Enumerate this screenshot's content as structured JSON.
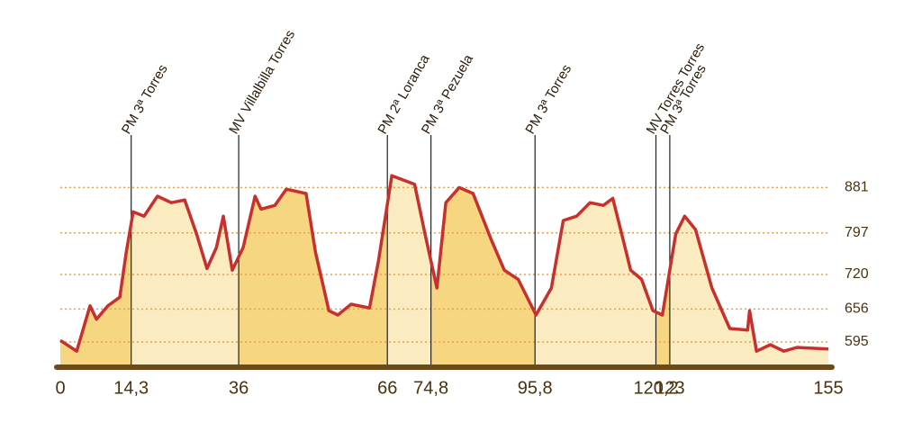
{
  "chart_data": {
    "type": "area",
    "x": [
      0,
      3.3,
      6,
      7.3,
      9.6,
      12,
      13.3,
      14.7,
      16.9,
      19.6,
      22.4,
      25.1,
      27.5,
      29.6,
      31.5,
      32.9,
      34.7,
      36.9,
      39.3,
      40.5,
      43.3,
      45.6,
      49.6,
      51.5,
      54.2,
      56,
      58.7,
      62.4,
      64.2,
      66.9,
      71.5,
      73.6,
      76,
      77.8,
      80.5,
      83.3,
      86.9,
      89.6,
      92.4,
      96,
      99.1,
      101.5,
      104.2,
      106.9,
      109.6,
      111.5,
      113.3,
      115.1,
      117.3,
      119.6,
      121.5,
      124.2,
      126,
      128.2,
      131.5,
      135.1,
      138.7,
      139.1,
      140.5,
      143.3,
      146,
      148.7,
      155
    ],
    "values": [
      598,
      578,
      662,
      637,
      662,
      678,
      761,
      836,
      828,
      865,
      853,
      858,
      795,
      731,
      770,
      828,
      728,
      770,
      865,
      841,
      848,
      878,
      870,
      761,
      653,
      645,
      665,
      658,
      745,
      903,
      887,
      795,
      695,
      853,
      881,
      870,
      786,
      728,
      711,
      645,
      695,
      820,
      828,
      853,
      848,
      861,
      795,
      728,
      711,
      653,
      645,
      795,
      828,
      803,
      695,
      620,
      617,
      653,
      578,
      590,
      578,
      585,
      582
    ],
    "color": "#c8302e",
    "fill_colors": [
      "#f6d680",
      "#faecc0"
    ],
    "grid_color": "#e8a04a",
    "xlim": [
      0,
      155
    ],
    "ylim": [
      550,
      960
    ],
    "xticks": [
      0,
      {
        "value": 14.3,
        "label": "14,3"
      },
      36,
      66,
      {
        "value": 74.8,
        "label": "74,8"
      },
      {
        "value": 95.8,
        "label": "95,8"
      },
      {
        "value": 120.2,
        "label": "120,2"
      },
      123,
      155
    ],
    "yticks": [
      595,
      656,
      720,
      797,
      881
    ],
    "climbs": [
      {
        "label": "PM 3ª Torres",
        "km": 14.3
      },
      {
        "label": "MV Villalbilla Torres",
        "km": 36
      },
      {
        "label": "PM 2ª Loranca",
        "km": 66
      },
      {
        "label": "PM 3ª Pezuela",
        "km": 74.8
      },
      {
        "label": "PM 3ª Torres",
        "km": 95.8
      },
      {
        "label": "MV Torres Torres",
        "km": 120.2
      },
      {
        "label": "PM 3ª Torres",
        "km": 123
      }
    ]
  }
}
